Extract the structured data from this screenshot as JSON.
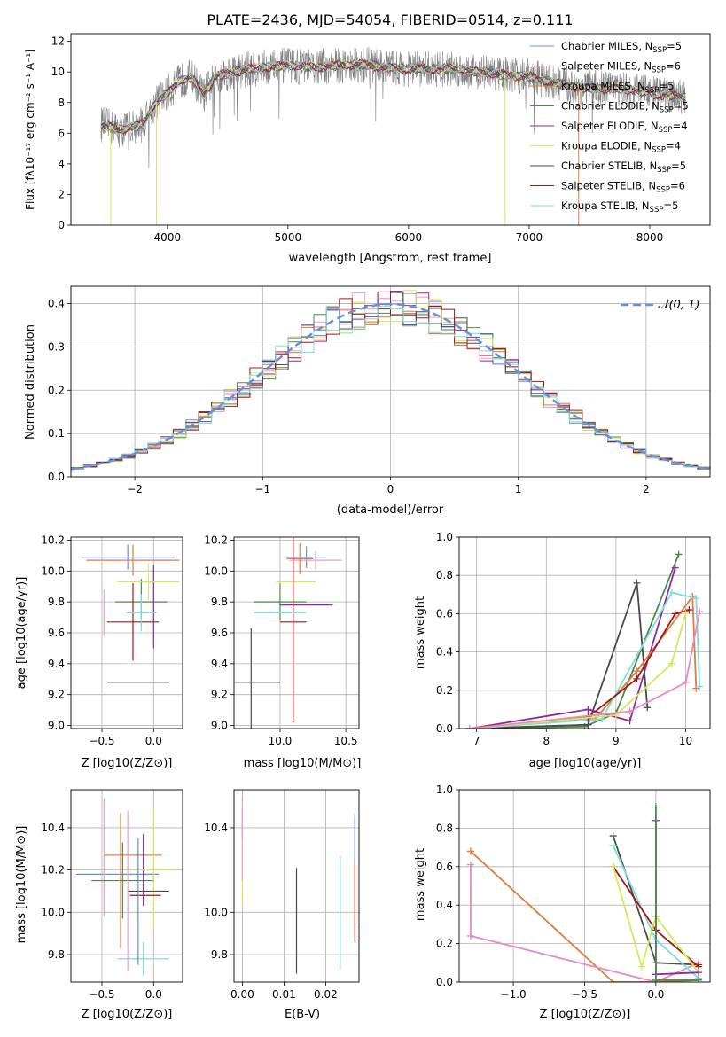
{
  "figure_title": "PLATE=2436, MJD=54054, FIBERID=0514, z=0.111",
  "colors": {
    "chabrier_miles": "#6a8fdb",
    "salpeter_miles": "#f29ec8",
    "kroupa_miles": "#e07b3a",
    "chabrier_elodie": "#4a8a4a",
    "salpeter_elodie": "#8a2aa0",
    "kroupa_elodie": "#d6e85a",
    "chabrier_stelib": "#4a4a4a",
    "salpeter_stelib": "#a01818",
    "kroupa_stelib": "#7fdcdc",
    "pink": "#e88ac0",
    "gaussian": "#6a8fdb",
    "data": "#808080"
  },
  "chart_data": [
    {
      "id": "spectrum",
      "type": "line",
      "title": "PLATE=2436, MJD=54054, FIBERID=0514, z=0.111",
      "xlabel": "wavelength [Angstrom, rest frame]",
      "ylabel": "Flux [fλ10⁻¹⁷ erg cm⁻² s⁻¹ A⁻¹]",
      "xlim": [
        3200,
        8500
      ],
      "ylim": [
        0,
        12.5
      ],
      "xticks": [
        4000,
        5000,
        6000,
        7000,
        8000
      ],
      "yticks": [
        0,
        2,
        4,
        6,
        8,
        10,
        12
      ],
      "grid": false,
      "legend_position": "top-right",
      "legend": [
        "Chabrier MILES, NSSP=5",
        "Salpeter MILES, NSSP=6",
        "Kroupa MILES, NSSP=5",
        "Chabrier ELODIE, NSSP=5",
        "Salpeter ELODIE, NSSP=4",
        "Kroupa ELODIE, NSSP=4",
        "Chabrier STELIB, NSSP=5",
        "Salpeter STELIB, NSSP=6",
        "Kroupa STELIB, NSSP=5"
      ],
      "continuum": {
        "x": [
          3450,
          3600,
          3700,
          3800,
          3900,
          4000,
          4100,
          4200,
          4300,
          4400,
          4500,
          4600,
          4800,
          5000,
          5200,
          5400,
          5600,
          5800,
          6000,
          6200,
          6400,
          6600,
          6800,
          7000,
          7200,
          7400,
          7600,
          7800,
          8000,
          8200,
          8300
        ],
        "y": [
          6.6,
          6.2,
          6.4,
          6.6,
          8.0,
          8.6,
          9.4,
          9.7,
          8.5,
          9.7,
          9.9,
          10.1,
          10.3,
          10.4,
          10.3,
          10.4,
          10.5,
          10.3,
          10.2,
          10.2,
          10.2,
          10.0,
          9.8,
          9.7,
          9.3,
          9.0,
          8.9,
          8.9,
          8.6,
          8.4,
          8.4
        ]
      },
      "dips": [
        {
          "x": 3530,
          "y": 0.0
        },
        {
          "x": 3910,
          "y": 0.0
        },
        {
          "x": 6800,
          "y": 0.0
        },
        {
          "x": 7410,
          "y": 0.0
        }
      ]
    },
    {
      "id": "residuals",
      "type": "line",
      "xlabel": "(data-model)/error",
      "ylabel": "Normed distribution",
      "xlim": [
        -2.5,
        2.5
      ],
      "ylim": [
        0,
        0.44
      ],
      "xticks": [
        -2,
        -1,
        0,
        1,
        2
      ],
      "yticks": [
        0.0,
        0.1,
        0.2,
        0.3,
        0.4
      ],
      "grid": true,
      "legend_position": "top-right",
      "series": [
        {
          "name": "𝒩(0, 1)",
          "style": "dashed",
          "mean": 0,
          "sigma": 1
        }
      ]
    },
    {
      "id": "age_vs_Z",
      "type": "scatter",
      "xlabel": "Z [log10(Z/Z⊙)]",
      "ylabel": "age  [log10(age/yr)]",
      "xlim": [
        -0.8,
        0.28
      ],
      "ylim": [
        8.98,
        10.22
      ],
      "xticks": [
        -0.5,
        0.0
      ],
      "xticklabels": [
        "−0.5",
        "0.0"
      ],
      "yticks": [
        9.0,
        9.2,
        9.4,
        9.6,
        9.8,
        10.0,
        10.2
      ],
      "grid": true,
      "points": [
        {
          "x": -0.25,
          "y": 10.09,
          "xerr": 0.45,
          "yerr": 0.08
        },
        {
          "x": -0.48,
          "y": 9.73,
          "xerr": 0.0,
          "yerr": 0.15
        },
        {
          "x": -0.2,
          "y": 10.07,
          "xerr": 0.45,
          "yerr": 0.1
        },
        {
          "x": -0.12,
          "y": 9.8,
          "xerr": 0.25,
          "yerr": 0.15
        },
        {
          "x": 0.0,
          "y": 9.77,
          "xerr": 0.0,
          "yerr": 0.27
        },
        {
          "x": -0.05,
          "y": 9.93,
          "xerr": 0.3,
          "yerr": 0.12
        },
        {
          "x": -0.15,
          "y": 9.28,
          "xerr": 0.3,
          "yerr": 0.0
        },
        {
          "x": -0.2,
          "y": 9.67,
          "xerr": 0.25,
          "yerr": 0.25
        },
        {
          "x": -0.12,
          "y": 9.73,
          "xerr": 0.15,
          "yerr": 0.12
        }
      ]
    },
    {
      "id": "age_vs_mass",
      "type": "scatter",
      "xlabel": "mass [log10(M/M⊙)]",
      "xlim": [
        9.65,
        10.6
      ],
      "ylim": [
        8.98,
        10.22
      ],
      "xticks": [
        10.0,
        10.5
      ],
      "yticks": [
        9.0,
        9.2,
        9.4,
        9.6,
        9.8,
        10.0,
        10.2
      ],
      "grid": true,
      "points": [
        {
          "x": 10.2,
          "y": 10.09,
          "xerr": 0.15,
          "yerr": 0.07
        },
        {
          "x": 10.27,
          "y": 10.07,
          "xerr": 0.2,
          "yerr": 0.06
        },
        {
          "x": 10.15,
          "y": 10.08,
          "xerr": 0.1,
          "yerr": 0.1
        },
        {
          "x": 10.0,
          "y": 9.8,
          "xerr": 0.2,
          "yerr": 0.12
        },
        {
          "x": 10.2,
          "y": 9.78,
          "xerr": 0.2,
          "yerr": 0.0
        },
        {
          "x": 10.12,
          "y": 9.93,
          "xerr": 0.15,
          "yerr": 0.0
        },
        {
          "x": 9.78,
          "y": 9.28,
          "xerr": 0.22,
          "yerr": 0.35
        },
        {
          "x": 10.1,
          "y": 9.67,
          "xerr": 0.1,
          "yerr": 0.65
        },
        {
          "x": 10.0,
          "y": 9.73,
          "xerr": 0.2,
          "yerr": 0.0
        }
      ]
    },
    {
      "id": "weight_vs_age",
      "type": "line",
      "xlabel": "age  [log10(age/yr)]",
      "ylabel": "mass weight",
      "xlim": [
        6.75,
        10.35
      ],
      "ylim": [
        0,
        1.0
      ],
      "xticks": [
        7,
        8,
        9,
        10
      ],
      "yticks": [
        0.0,
        0.2,
        0.4,
        0.6,
        0.8,
        1.0
      ],
      "grid": true,
      "series": [
        {
          "x": [
            6.9,
            8.55,
            9.0,
            9.9
          ],
          "y": [
            0.0,
            0.01,
            0.08,
            0.91
          ],
          "color": "chabrier_elodie"
        },
        {
          "x": [
            6.9,
            8.6,
            9.2,
            9.85
          ],
          "y": [
            0.0,
            0.1,
            0.04,
            0.84
          ],
          "color": "salpeter_elodie"
        },
        {
          "x": [
            6.9,
            8.6,
            9.3,
            9.45
          ],
          "y": [
            0.0,
            0.02,
            0.76,
            0.11
          ],
          "color": "chabrier_stelib"
        },
        {
          "x": [
            6.9,
            8.7,
            9.3,
            10.1,
            10.15
          ],
          "y": [
            0.0,
            0.05,
            0.3,
            0.69,
            0.21
          ],
          "color": "kroupa_miles"
        },
        {
          "x": [
            6.9,
            8.8,
            9.8,
            10.15,
            10.2
          ],
          "y": [
            0.0,
            0.05,
            0.71,
            0.68,
            0.22
          ],
          "color": "kroupa_stelib"
        },
        {
          "x": [
            6.9,
            8.6,
            9.3,
            9.85,
            10.05
          ],
          "y": [
            0.0,
            0.06,
            0.26,
            0.6,
            0.62
          ],
          "color": "salpeter_stelib"
        },
        {
          "x": [
            6.9,
            9.0,
            9.8,
            10.0
          ],
          "y": [
            0.0,
            0.07,
            0.34,
            0.6
          ],
          "color": "kroupa_elodie"
        },
        {
          "x": [
            6.9,
            9.2,
            10.0,
            10.2
          ],
          "y": [
            0.0,
            0.09,
            0.24,
            0.61
          ],
          "color": "pink"
        }
      ]
    },
    {
      "id": "mass_vs_Z",
      "type": "scatter",
      "xlabel": "Z [log10(Z/Z⊙)]",
      "ylabel": "mass [log10(M/M⊙)]",
      "xlim": [
        -0.8,
        0.28
      ],
      "ylim": [
        9.67,
        10.58
      ],
      "xticks": [
        -0.5,
        0.0
      ],
      "xticklabels": [
        "−0.5",
        "0.0"
      ],
      "yticks": [
        9.8,
        10.0,
        10.2,
        10.4
      ],
      "grid": true,
      "points": [
        {
          "x": -0.35,
          "y": 10.18,
          "xerr": 0.4,
          "yerr": 0.0
        },
        {
          "x": -0.48,
          "y": 10.26,
          "xerr": 0.0,
          "yerr": 0.28
        },
        {
          "x": -0.2,
          "y": 10.27,
          "xerr": 0.28,
          "yerr": 0.0
        },
        {
          "x": -0.3,
          "y": 10.15,
          "xerr": 0.3,
          "yerr": 0.18
        },
        {
          "x": -0.1,
          "y": 10.2,
          "xerr": 0.0,
          "yerr": 0.17
        },
        {
          "x": 0.0,
          "y": 10.2,
          "xerr": 0.2,
          "yerr": 0.28
        },
        {
          "x": -0.05,
          "y": 10.1,
          "xerr": 0.2,
          "yerr": 0.0
        },
        {
          "x": -0.08,
          "y": 10.08,
          "xerr": 0.15,
          "yerr": 0.0
        },
        {
          "x": -0.1,
          "y": 9.78,
          "xerr": 0.25,
          "yerr": 0.08
        },
        {
          "x": -0.15,
          "y": 10.05,
          "xerr": 0.0,
          "yerr": 0.3
        },
        {
          "x": -0.25,
          "y": 10.1,
          "xerr": 0.0,
          "yerr": 0.38
        },
        {
          "x": -0.32,
          "y": 10.15,
          "xerr": 0.0,
          "yerr": 0.32
        }
      ]
    },
    {
      "id": "mass_vs_ebv",
      "type": "scatter",
      "xlabel": "E(B-V)",
      "xlim": [
        -0.002,
        0.028
      ],
      "ylim": [
        9.67,
        10.58
      ],
      "xticks": [
        0.0,
        0.01,
        0.02
      ],
      "xticklabels": [
        "0.00",
        "0.01",
        "0.02"
      ],
      "yticks": [
        9.8,
        10.0,
        10.4
      ],
      "yticklabels": [
        "9.8",
        "10.0",
        "10.4"
      ],
      "grid": true,
      "points": [
        {
          "x": 0.0,
          "y": 10.42,
          "yerr": 0.07,
          "color": "salpeter_elodie"
        },
        {
          "x": 0.0,
          "y": 10.2,
          "yerr": 0.17,
          "color": "kroupa_elodie"
        },
        {
          "x": 0.0,
          "y": 10.35,
          "yerr": 0.2,
          "color": "salpeter_miles"
        },
        {
          "x": 0.013,
          "y": 9.96,
          "yerr": 0.25,
          "color": "chabrier_stelib"
        },
        {
          "x": 0.0235,
          "y": 10.0,
          "yerr": 0.27,
          "color": "kroupa_stelib"
        },
        {
          "x": 0.027,
          "y": 10.06,
          "yerr": 0.2,
          "color": "salpeter_stelib"
        },
        {
          "x": 0.027,
          "y": 10.2,
          "yerr": 0.25,
          "color": "kroupa_miles"
        },
        {
          "x": 0.027,
          "y": 10.35,
          "yerr": 0.12,
          "color": "chabrier_miles"
        }
      ]
    },
    {
      "id": "weight_vs_Z",
      "type": "line",
      "xlabel": "Z [log10(Z/Z⊙)]",
      "ylabel": "mass weight",
      "xlim": [
        -1.38,
        0.38
      ],
      "ylim": [
        0,
        1.0
      ],
      "xticks": [
        -1.0,
        -0.5,
        0.0
      ],
      "xticklabels": [
        "−1.0",
        "−0.5",
        "0.0"
      ],
      "yticks": [
        0.0,
        0.2,
        0.4,
        0.6,
        0.8,
        1.0
      ],
      "grid": true,
      "series": [
        {
          "x": [
            -1.3,
            -0.3,
            0.0,
            0.3
          ],
          "y": [
            0.68,
            0.0,
            0.0,
            0.01
          ],
          "color": "kroupa_miles"
        },
        {
          "x": [
            -1.3,
            -1.3,
            0.0,
            0.3
          ],
          "y": [
            0.61,
            0.24,
            0.0,
            0.1
          ],
          "color": "pink"
        },
        {
          "x": [
            -0.3,
            0.0,
            0.3
          ],
          "y": [
            0.76,
            0.1,
            0.09
          ],
          "color": "chabrier_stelib"
        },
        {
          "x": [
            -0.3,
            0.0,
            0.3
          ],
          "y": [
            0.71,
            0.22,
            0.02
          ],
          "color": "kroupa_stelib"
        },
        {
          "x": [
            -0.3,
            0.0,
            0.3
          ],
          "y": [
            0.6,
            0.27,
            0.08
          ],
          "color": "salpeter_stelib"
        },
        {
          "x": [
            -0.3,
            -0.1,
            0.0,
            0.3
          ],
          "y": [
            0.6,
            0.08,
            0.34,
            0.05
          ],
          "color": "kroupa_elodie"
        },
        {
          "x": [
            0.0,
            0.0,
            0.3
          ],
          "y": [
            0.84,
            0.04,
            0.05
          ],
          "color": "salpeter_elodie"
        },
        {
          "x": [
            0.0,
            0.0,
            0.3
          ],
          "y": [
            0.91,
            0.01,
            0.01
          ],
          "color": "chabrier_elodie"
        }
      ]
    }
  ]
}
